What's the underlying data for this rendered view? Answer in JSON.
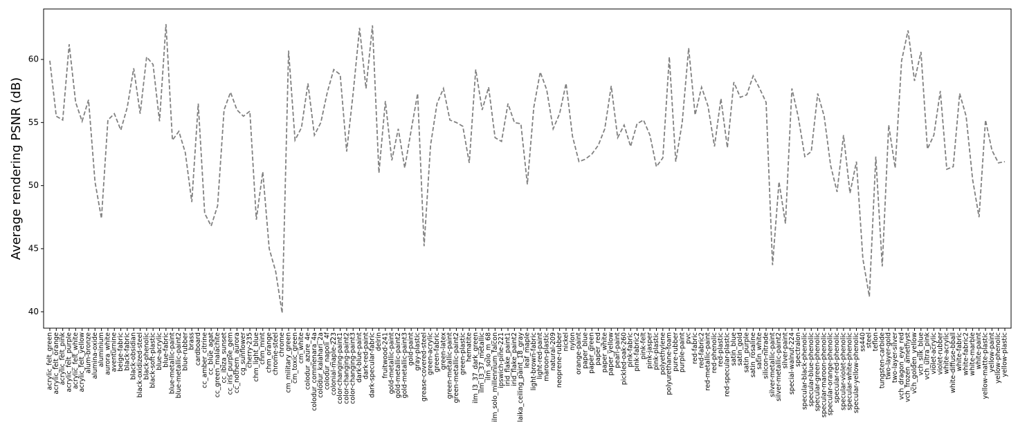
{
  "chart_data": {
    "type": "line",
    "y_label": "Average rendering PSNR (dB)",
    "categories": [
      "acrylic_felt_green",
      "acrylic_felt_orange",
      "acrylic_felt_pink",
      "acrylic_felt_purple",
      "acrylic_felt_white",
      "acrylic_felt_yellow",
      "alum-bronze",
      "alumina-oxide",
      "aluminium",
      "aurora_white",
      "aventurnine",
      "beige-fabric",
      "black-fabric",
      "black-obsidian",
      "black-oxidized-steel",
      "black-phenolic",
      "black-soft-plastic",
      "blue-acrylic",
      "blue-fabric",
      "blue-metallic-paint",
      "blue-metallic-paint2",
      "blue-rubber",
      "brass",
      "cardboard",
      "cc_amber_citrine",
      "cc_blue_agat",
      "cc_green_malachite",
      "cc_ibiza_sunset",
      "cc_iris_purple_gem",
      "cc_nothern_aurora",
      "cg_sunflower",
      "cherry-235",
      "chm_light_blue",
      "chm_mint",
      "chm_orange",
      "chrome-steel",
      "chrome",
      "cm_military_green",
      "cm_toxic_green",
      "cm_white",
      "colodur_azure_4e",
      "colodur_commenara_4a",
      "colodur_kalahari_2a",
      "colodur_napoli_4f",
      "colonial-maple-223",
      "color-changing-paint1",
      "color-changing-paint2",
      "color-changing-paint3",
      "dark-blue-paint",
      "dark-red-paint",
      "dark-specular-fabric",
      "delrin",
      "fruitwood-241",
      "gold-metallic-paint",
      "gold-metallic-paint2",
      "gold-metallic-paint3",
      "gold-paint",
      "gray-plastic",
      "grease-covered-steel",
      "green-acrylic",
      "green-fabric",
      "green-latex",
      "green-metallic-paint",
      "green-metallic-paint2",
      "green-plastic",
      "hematite",
      "ilm_l3_37_dark_green",
      "ilm_l3_37_metallic",
      "ilm_solo_m_68",
      "ilm_solo_millennium_falcon",
      "ipswich-pine-221",
      "irid_flake_paint1",
      "irid_flake_paint2",
      "laika_ceiling_paint_18_gray",
      "leaf_maple",
      "light-brown-fabric",
      "light-red-paint",
      "maroon-plastic",
      "natural-209",
      "neoprene-rubber",
      "nickel",
      "nylon",
      "orange-paint",
      "paper_blue",
      "paper_green",
      "paper_red",
      "paper_white",
      "paper_yellow",
      "pearl-paint",
      "pickled-oak-260",
      "pink-fabric",
      "pink-fabric2",
      "pink-felt",
      "pink-jasper",
      "pink-plastic",
      "polyethylene",
      "polyurethane-foam",
      "pure-rubber",
      "purple-paint",
      "pvc",
      "red-fabric",
      "red-fabric2",
      "red-metallic-paint",
      "red-phenolic",
      "red-plastic",
      "red-specular-plastic",
      "satin_blue",
      "satin_gold",
      "satin_purple",
      "satin_rosaline",
      "satin_white",
      "silicon-nitrade",
      "silver-metallic-paint",
      "silver-metallic-paint2",
      "silver-paint",
      "special-walnut-224",
      "spectralon",
      "specular-black-phenolic",
      "specular-blue-phenolic",
      "specular-green-phenolic",
      "specular-maroon-phenolic",
      "specular-orange-phenolic",
      "specular-red-phenolic",
      "specular-violet-phenolic",
      "specular-white-phenolic",
      "specular-yellow-phenolic",
      "ss440",
      "steel",
      "teflon",
      "tungsten-carbide",
      "two-layer-gold",
      "two-layer-silver",
      "vch_dragon_eye_red",
      "vch_frozen_amethyst",
      "vch_golden_yellow",
      "vch_silk_blue",
      "vch_ultra_pink",
      "violet-acrylic",
      "violet-rubber",
      "white-acrylic",
      "white-diffuse-bball",
      "white-fabric",
      "white-fabric2",
      "white-marble",
      "white-paint",
      "yellow-matte-plastic",
      "yellow-paint",
      "yellow-phenolic",
      "yellow-plastic"
    ],
    "values": [
      59.9,
      55.5,
      55.2,
      61.2,
      56.6,
      55.1,
      56.8,
      50.3,
      47.4,
      55.2,
      55.7,
      54.4,
      56.2,
      59.3,
      55.7,
      60.2,
      59.6,
      55.1,
      62.8,
      53.6,
      54.3,
      52.6,
      48.7,
      56.5,
      47.8,
      46.8,
      48.4,
      56.0,
      57.4,
      56.0,
      55.5,
      55.9,
      47.3,
      51.1,
      45.0,
      43.2,
      39.9,
      60.7,
      53.6,
      54.6,
      58.1,
      54.0,
      55.0,
      57.4,
      59.2,
      58.8,
      52.7,
      57.3,
      62.5,
      57.7,
      62.7,
      51.0,
      56.7,
      52.0,
      54.5,
      51.4,
      54.4,
      57.3,
      45.2,
      53.2,
      56.5,
      57.7,
      55.2,
      55.0,
      54.7,
      51.8,
      59.2,
      56.0,
      57.8,
      53.8,
      53.5,
      56.5,
      55.0,
      54.9,
      50.1,
      56.2,
      59.0,
      57.6,
      54.5,
      55.7,
      58.1,
      53.9,
      51.9,
      52.1,
      52.5,
      53.2,
      54.5,
      57.9,
      53.8,
      54.8,
      53.1,
      54.9,
      55.2,
      54.0,
      51.5,
      52.2,
      60.2,
      51.9,
      55.0,
      60.9,
      55.6,
      57.8,
      56.3,
      53.1,
      56.9,
      53.0,
      58.2,
      57.0,
      57.2,
      58.7,
      57.7,
      56.6,
      43.7,
      50.3,
      47.0,
      57.7,
      55.4,
      52.3,
      52.7,
      57.3,
      55.5,
      51.6,
      49.5,
      54.0,
      49.4,
      51.9,
      44.2,
      41.2,
      52.3,
      43.6,
      54.8,
      51.4,
      59.9,
      62.3,
      58.3,
      60.6,
      52.9,
      54.0,
      57.5,
      51.3,
      51.5,
      57.3,
      55.5,
      50.5,
      47.5,
      55.2,
      52.8,
      51.8,
      51.9
    ],
    "color": "#808080",
    "line_style": "dashed",
    "ylim": [
      38.7,
      64.0
    ],
    "yticks": [
      40,
      45,
      50,
      55,
      60
    ],
    "grid": false
  }
}
